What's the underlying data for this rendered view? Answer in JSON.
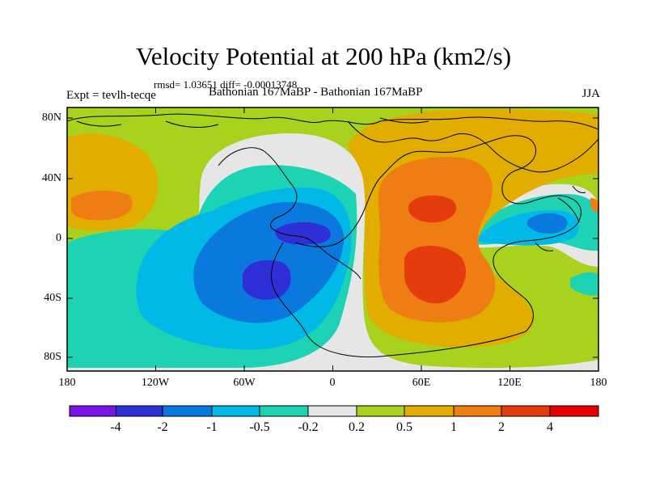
{
  "title": "Velocity Potential at 200 hPa (km2/s)",
  "stats": "rmsd= 1.03651 diff= -0.00013748",
  "left_label": "Expt = tevlh-tecqe",
  "center_label": "Bathonian 167MaBP - Bathonian 167MaBP",
  "right_label": "JJA",
  "map": {
    "y_ticks": [
      "80N",
      "40N",
      "0",
      "40S",
      "80S"
    ],
    "x_ticks": [
      "180",
      "120W",
      "60W",
      "0",
      "60E",
      "120E",
      "180"
    ],
    "field_colors": {
      "lt_m4": "#7b12e6",
      "m4_m2": "#2f2fd8",
      "m2_m1": "#0a78dc",
      "m1_m05": "#00b9e6",
      "m05_m02": "#1ed2b4",
      "m02_02": "#e6e6e6",
      "p02_05": "#a8d21e",
      "p05_1": "#e1ae00",
      "p1_2": "#ee7d14",
      "p2_4": "#e43c0c",
      "gt_4": "#e60000"
    }
  },
  "colorbar": {
    "labels": [
      "-4",
      "-2",
      "-1",
      "-0.5",
      "-0.2",
      "0.2",
      "0.5",
      "1",
      "2",
      "4"
    ],
    "colors": [
      "#7b12e6",
      "#2f2fd8",
      "#0a78dc",
      "#00b9e6",
      "#1ed2b4",
      "#e6e6e6",
      "#a8d21e",
      "#e1ae00",
      "#ee7d14",
      "#e43c0c",
      "#e60000"
    ]
  }
}
